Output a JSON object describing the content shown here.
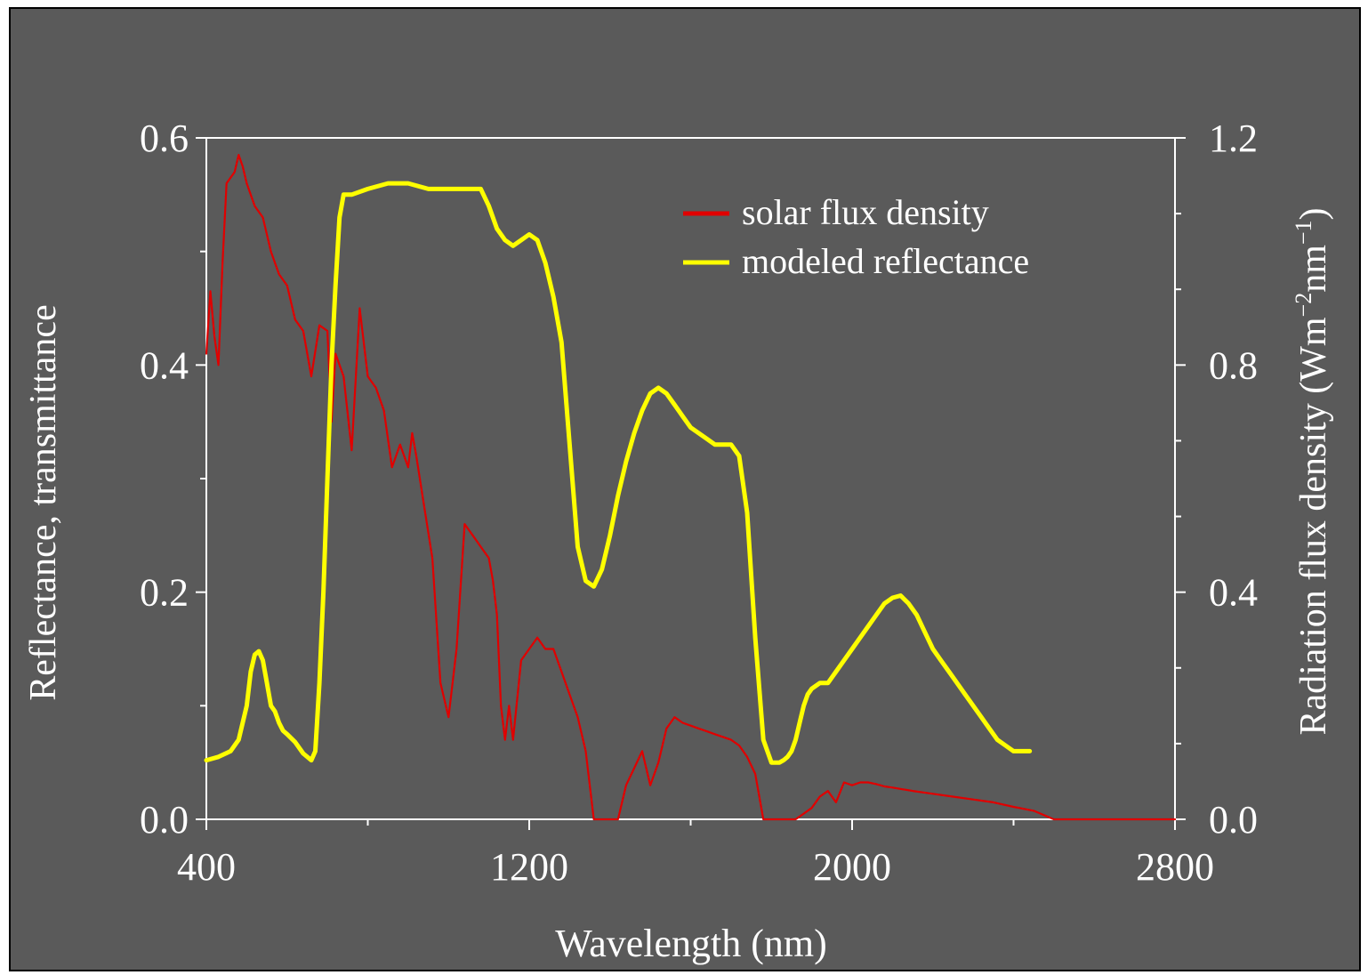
{
  "chart_data": {
    "type": "line",
    "xlabel": "Wavelength (nm)",
    "ylabel_left": "Reflectance, transmittance",
    "ylabel_right_main": "Radiation flux density (Wm",
    "ylabel_right_sup1": "−2",
    "ylabel_right_mid": "nm",
    "ylabel_right_sup2": "−1",
    "ylabel_right_end": ")",
    "xlim": [
      400,
      2800
    ],
    "ylim_left": [
      0,
      0.6
    ],
    "ylim_right": [
      0,
      1.2
    ],
    "x_ticks": [
      400,
      1200,
      2000,
      2800
    ],
    "x_tick_labels": [
      "400",
      "1200",
      "2000",
      "2800"
    ],
    "y_left_ticks": [
      0,
      0.2,
      0.4,
      0.6
    ],
    "y_left_tick_labels": [
      "0.0",
      "0.2",
      "0.4",
      "0.6"
    ],
    "y_right_ticks": [
      0,
      0.4,
      0.8,
      1.2
    ],
    "y_right_tick_labels": [
      "0.0",
      "0.4",
      "0.8",
      "1.2"
    ],
    "legend_position": "top-right",
    "series": [
      {
        "name": "solar flux density",
        "color": "#e00000",
        "axis": "right",
        "x": [
          400,
          410,
          420,
          430,
          440,
          450,
          460,
          470,
          480,
          490,
          500,
          520,
          540,
          560,
          580,
          600,
          620,
          640,
          660,
          680,
          700,
          710,
          720,
          740,
          760,
          780,
          800,
          820,
          840,
          860,
          880,
          900,
          910,
          920,
          940,
          960,
          980,
          1000,
          1020,
          1040,
          1060,
          1080,
          1100,
          1110,
          1120,
          1130,
          1140,
          1150,
          1160,
          1180,
          1200,
          1220,
          1240,
          1260,
          1280,
          1300,
          1320,
          1340,
          1360,
          1380,
          1400,
          1420,
          1440,
          1460,
          1480,
          1500,
          1520,
          1540,
          1560,
          1580,
          1600,
          1620,
          1640,
          1660,
          1680,
          1700,
          1720,
          1740,
          1760,
          1780,
          1800,
          1820,
          1840,
          1860,
          1880,
          1900,
          1920,
          1940,
          1960,
          1980,
          2000,
          2020,
          2040,
          2060,
          2080,
          2100,
          2150,
          2200,
          2250,
          2300,
          2350,
          2400,
          2450,
          2500,
          2550,
          2600,
          2650,
          2700,
          2800
        ],
        "values": [
          0.82,
          0.93,
          0.85,
          0.8,
          0.98,
          1.12,
          1.13,
          1.14,
          1.17,
          1.15,
          1.12,
          1.08,
          1.06,
          1.0,
          0.96,
          0.94,
          0.88,
          0.86,
          0.78,
          0.87,
          0.86,
          0.7,
          0.82,
          0.78,
          0.65,
          0.9,
          0.78,
          0.76,
          0.72,
          0.62,
          0.66,
          0.62,
          0.68,
          0.64,
          0.55,
          0.46,
          0.24,
          0.18,
          0.3,
          0.52,
          0.5,
          0.48,
          0.46,
          0.42,
          0.36,
          0.2,
          0.14,
          0.2,
          0.14,
          0.28,
          0.3,
          0.32,
          0.3,
          0.3,
          0.26,
          0.22,
          0.18,
          0.12,
          0.0,
          0.0,
          0.0,
          0.0,
          0.06,
          0.09,
          0.12,
          0.06,
          0.1,
          0.16,
          0.18,
          0.17,
          0.165,
          0.16,
          0.155,
          0.15,
          0.145,
          0.14,
          0.13,
          0.11,
          0.08,
          0.0,
          0.0,
          0.0,
          0.0,
          0.0,
          0.01,
          0.02,
          0.04,
          0.05,
          0.03,
          0.065,
          0.06,
          0.065,
          0.065,
          0.062,
          0.058,
          0.056,
          0.05,
          0.045,
          0.04,
          0.035,
          0.03,
          0.022,
          0.015,
          0.0,
          0.0,
          0.0,
          0.0,
          0.0,
          0.0
        ]
      },
      {
        "name": "modeled reflectance",
        "color": "#ffff00",
        "axis": "left",
        "x": [
          400,
          430,
          460,
          480,
          500,
          510,
          520,
          530,
          540,
          550,
          560,
          570,
          580,
          590,
          600,
          620,
          640,
          660,
          670,
          680,
          690,
          700,
          710,
          720,
          730,
          740,
          750,
          760,
          800,
          850,
          900,
          950,
          1000,
          1050,
          1080,
          1100,
          1120,
          1140,
          1160,
          1180,
          1200,
          1220,
          1240,
          1260,
          1280,
          1300,
          1320,
          1340,
          1360,
          1380,
          1400,
          1420,
          1440,
          1460,
          1480,
          1500,
          1520,
          1540,
          1560,
          1580,
          1600,
          1620,
          1640,
          1660,
          1680,
          1700,
          1720,
          1740,
          1760,
          1780,
          1800,
          1820,
          1830,
          1840,
          1850,
          1860,
          1870,
          1880,
          1890,
          1900,
          1920,
          1940,
          1960,
          1980,
          2000,
          2020,
          2040,
          2060,
          2080,
          2100,
          2120,
          2140,
          2160,
          2180,
          2200,
          2220,
          2240,
          2260,
          2280,
          2300,
          2320,
          2340,
          2360,
          2380,
          2400,
          2420,
          2440
        ],
        "values": [
          0.052,
          0.055,
          0.06,
          0.07,
          0.1,
          0.13,
          0.145,
          0.148,
          0.14,
          0.12,
          0.1,
          0.095,
          0.085,
          0.078,
          0.075,
          0.068,
          0.058,
          0.052,
          0.06,
          0.12,
          0.2,
          0.3,
          0.4,
          0.47,
          0.53,
          0.55,
          0.55,
          0.55,
          0.555,
          0.56,
          0.56,
          0.555,
          0.555,
          0.555,
          0.555,
          0.54,
          0.52,
          0.51,
          0.505,
          0.51,
          0.515,
          0.51,
          0.49,
          0.46,
          0.42,
          0.33,
          0.24,
          0.21,
          0.205,
          0.22,
          0.25,
          0.285,
          0.315,
          0.34,
          0.36,
          0.375,
          0.38,
          0.375,
          0.365,
          0.355,
          0.345,
          0.34,
          0.335,
          0.33,
          0.33,
          0.33,
          0.32,
          0.27,
          0.16,
          0.07,
          0.05,
          0.05,
          0.052,
          0.055,
          0.06,
          0.07,
          0.085,
          0.1,
          0.11,
          0.115,
          0.12,
          0.12,
          0.13,
          0.14,
          0.15,
          0.16,
          0.17,
          0.18,
          0.19,
          0.195,
          0.197,
          0.19,
          0.18,
          0.165,
          0.15,
          0.14,
          0.13,
          0.12,
          0.11,
          0.1,
          0.09,
          0.08,
          0.07,
          0.065,
          0.06,
          0.06,
          0.06
        ]
      }
    ]
  }
}
